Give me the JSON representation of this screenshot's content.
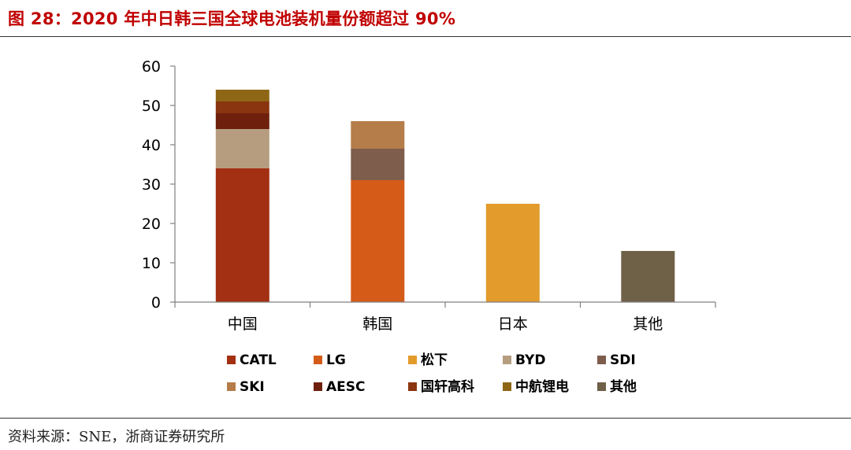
{
  "figure": {
    "label": "图 28：",
    "title": "2020 年中日韩三国全球电池装机量份额超过 90%"
  },
  "source": "资料来源：SNE，浙商证券研究所",
  "chart_data": {
    "type": "bar",
    "stacked": true,
    "categories": [
      "中国",
      "韩国",
      "日本",
      "其他"
    ],
    "ylim": [
      0,
      60
    ],
    "yticks": [
      0,
      10,
      20,
      30,
      40,
      50,
      60
    ],
    "legend_position": "bottom",
    "grid": false,
    "series": [
      {
        "name": "CATL",
        "color": "#A33012",
        "values": [
          34,
          0,
          0,
          0
        ]
      },
      {
        "name": "LG",
        "color": "#D55B19",
        "values": [
          0,
          31,
          0,
          0
        ]
      },
      {
        "name": "松下",
        "color": "#E39B2B",
        "values": [
          0,
          0,
          25,
          0
        ]
      },
      {
        "name": "BYD",
        "color": "#B69D80",
        "values": [
          10,
          0,
          0,
          0
        ]
      },
      {
        "name": "SDI",
        "color": "#7E5D4D",
        "values": [
          0,
          8,
          0,
          0
        ]
      },
      {
        "name": "SKI",
        "color": "#B57D49",
        "values": [
          0,
          7,
          0,
          0
        ]
      },
      {
        "name": "AESC",
        "color": "#6E200C",
        "values": [
          4,
          0,
          0,
          0
        ]
      },
      {
        "name": "国轩高科",
        "color": "#8A3510",
        "values": [
          3,
          0,
          0,
          0
        ]
      },
      {
        "name": "中航锂电",
        "color": "#8E6616",
        "values": [
          3,
          0,
          0,
          0
        ]
      },
      {
        "name": "其他",
        "color": "#6F6048",
        "values": [
          0,
          0,
          0,
          13
        ]
      }
    ]
  }
}
